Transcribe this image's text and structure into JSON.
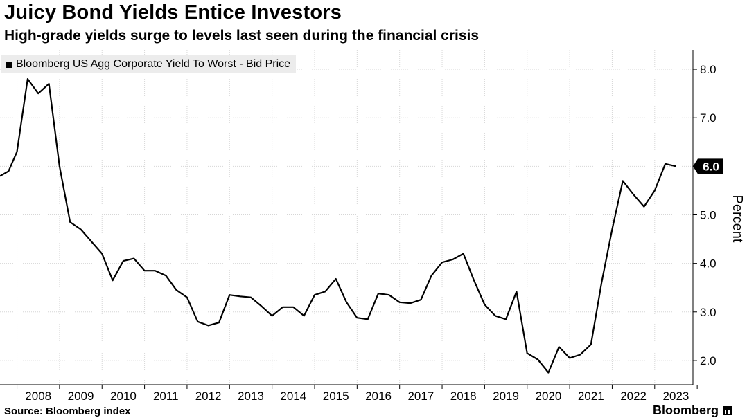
{
  "header": {
    "title": "Juicy Bond Yields Entice Investors",
    "subtitle": "High-grade yields surge to levels last seen during the financial crisis"
  },
  "footer": {
    "source": "Source: Bloomberg index",
    "brand": "Bloomberg",
    "brand_icon": "bloomberg-terminal-icon"
  },
  "colors": {
    "line": "#000000",
    "grid": "#d6d6d6",
    "legend_bg": "#ececec"
  },
  "chart_data": {
    "type": "line",
    "title": "Juicy Bond Yields Entice Investors",
    "subtitle": "High-grade yields surge to levels last seen during the financial crisis",
    "xlabel": "",
    "ylabel": "Percent",
    "y_axis_side": "right",
    "ylim": [
      1.5,
      8.4
    ],
    "yticks": [
      2.0,
      3.0,
      4.0,
      5.0,
      6.0,
      7.0,
      8.0
    ],
    "ytick_labels": [
      "2.0",
      "3.0",
      "4.0",
      "5.0",
      "6.0",
      "7.0",
      "8.0"
    ],
    "xlim": [
      2007.6,
      2023.9
    ],
    "xticks": [
      2008,
      2009,
      2010,
      2011,
      2012,
      2013,
      2014,
      2015,
      2016,
      2017,
      2018,
      2019,
      2020,
      2021,
      2022,
      2023
    ],
    "xtick_labels": [
      "2008",
      "2009",
      "2010",
      "2011",
      "2012",
      "2013",
      "2014",
      "2015",
      "2016",
      "2017",
      "2018",
      "2019",
      "2020",
      "2021",
      "2022",
      "2023"
    ],
    "grid": true,
    "legend_position": "top-left",
    "last_value_label": "6.0",
    "series": [
      {
        "name": "Bloomberg US Agg Corporate Yield To Worst - Bid Price",
        "x": [
          2007.6,
          2007.8,
          2008.0,
          2008.25,
          2008.5,
          2008.75,
          2009.0,
          2009.25,
          2009.5,
          2009.75,
          2010.0,
          2010.25,
          2010.5,
          2010.75,
          2011.0,
          2011.25,
          2011.5,
          2011.75,
          2012.0,
          2012.25,
          2012.5,
          2012.75,
          2013.0,
          2013.25,
          2013.5,
          2013.75,
          2014.0,
          2014.25,
          2014.5,
          2014.75,
          2015.0,
          2015.25,
          2015.5,
          2015.75,
          2016.0,
          2016.25,
          2016.5,
          2016.75,
          2017.0,
          2017.25,
          2017.5,
          2017.75,
          2018.0,
          2018.25,
          2018.5,
          2018.75,
          2019.0,
          2019.25,
          2019.5,
          2019.75,
          2020.0,
          2020.25,
          2020.5,
          2020.75,
          2021.0,
          2021.25,
          2021.5,
          2021.75,
          2022.0,
          2022.25,
          2022.5,
          2022.75,
          2023.0,
          2023.25,
          2023.5
        ],
        "values": [
          5.8,
          5.9,
          6.3,
          7.8,
          7.5,
          7.7,
          6.0,
          4.85,
          4.7,
          4.45,
          4.2,
          3.65,
          4.05,
          4.1,
          3.85,
          3.85,
          3.75,
          3.45,
          3.3,
          2.8,
          2.72,
          2.78,
          3.35,
          3.32,
          3.3,
          3.12,
          2.92,
          3.1,
          3.1,
          2.92,
          3.35,
          3.42,
          3.68,
          3.2,
          2.88,
          2.85,
          3.38,
          3.35,
          3.2,
          3.18,
          3.25,
          3.75,
          4.02,
          4.08,
          4.2,
          3.65,
          3.15,
          2.92,
          2.85,
          3.42,
          2.15,
          2.02,
          1.75,
          2.28,
          2.05,
          2.12,
          2.33,
          3.6,
          4.7,
          5.7,
          5.42,
          5.17,
          5.5,
          6.05,
          6.0
        ]
      }
    ]
  }
}
